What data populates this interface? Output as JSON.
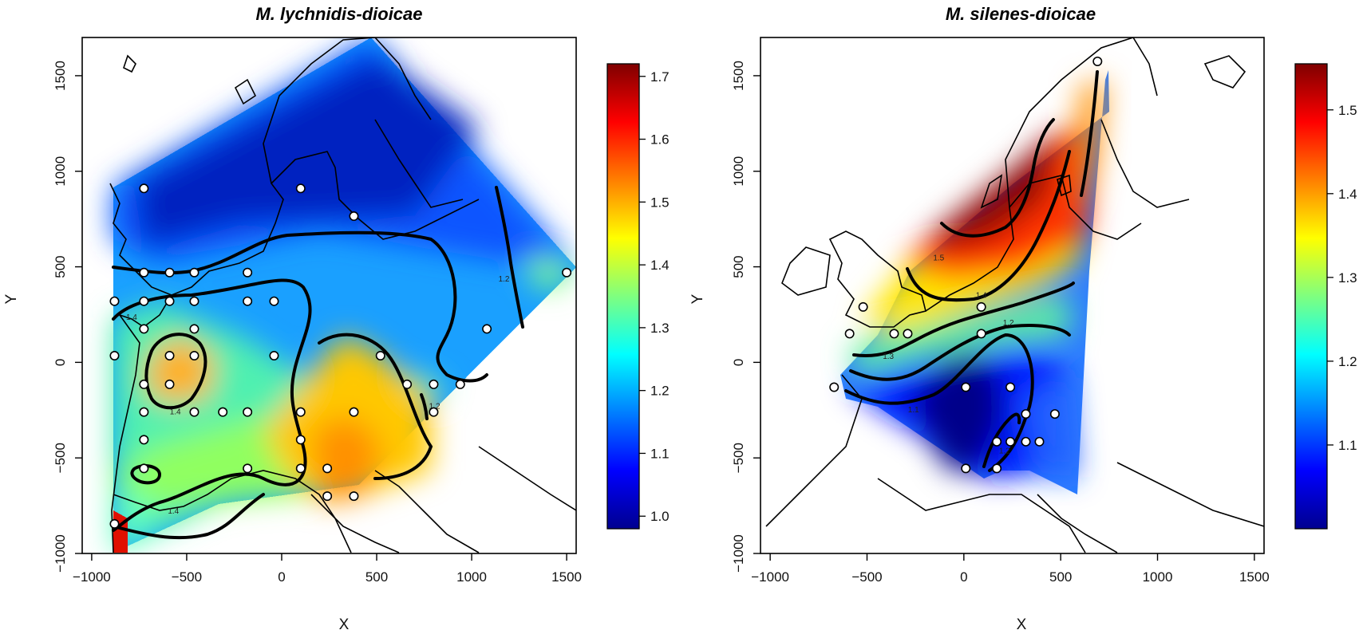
{
  "chart_data": [
    {
      "type": "heatmap",
      "title": "M. lychnidis-dioicae",
      "xlabel": "X",
      "ylabel": "Y",
      "xlim": [
        -1050,
        1550
      ],
      "ylim": [
        -1000,
        1700
      ],
      "xticks": [
        -1000,
        -500,
        0,
        500,
        1000,
        1500
      ],
      "yticks": [
        -1000,
        -500,
        0,
        500,
        1000,
        1500
      ],
      "xtick_labels": [
        "−1000",
        "−500",
        "0",
        "500",
        "1000",
        "1500"
      ],
      "ytick_labels": [
        "−1000",
        "−500",
        "0",
        "500",
        "1000",
        "1500"
      ],
      "grid": false,
      "colorbar": {
        "range": [
          0.98,
          1.72
        ],
        "ticks": [
          1.0,
          1.1,
          1.2,
          1.3,
          1.4,
          1.5,
          1.6,
          1.7
        ],
        "tick_labels": [
          "1.0",
          "1.1",
          "1.2",
          "1.3",
          "1.4",
          "1.5",
          "1.6",
          "1.7"
        ],
        "colors": [
          "#00008f",
          "#0000ff",
          "#007fff",
          "#00ffff",
          "#7fff7f",
          "#ffff00",
          "#ff7f00",
          "#ff0000",
          "#7f0000"
        ]
      },
      "contour_labels": [
        {
          "text": "1.2",
          "x": 1170,
          "y": 440
        },
        {
          "text": "1.4",
          "x": -560,
          "y": -255
        },
        {
          "text": "1.4",
          "x": -570,
          "y": -775
        },
        {
          "text": "1.2",
          "x": 805,
          "y": -225
        },
        {
          "text": "1.4",
          "x": -790,
          "y": 240
        }
      ],
      "sample_sites": [
        {
          "x": -725,
          "y": 910
        },
        {
          "x": 100,
          "y": 910
        },
        {
          "x": 380,
          "y": 765
        },
        {
          "x": -880,
          "y": 320
        },
        {
          "x": -725,
          "y": 470
        },
        {
          "x": -590,
          "y": 470
        },
        {
          "x": -460,
          "y": 470
        },
        {
          "x": -180,
          "y": 470
        },
        {
          "x": -725,
          "y": 320
        },
        {
          "x": -590,
          "y": 320
        },
        {
          "x": -460,
          "y": 320
        },
        {
          "x": -180,
          "y": 320
        },
        {
          "x": -40,
          "y": 320
        },
        {
          "x": -725,
          "y": 175
        },
        {
          "x": -460,
          "y": 175
        },
        {
          "x": -880,
          "y": 35
        },
        {
          "x": -590,
          "y": 35
        },
        {
          "x": -460,
          "y": 35
        },
        {
          "x": -40,
          "y": 35
        },
        {
          "x": 520,
          "y": 35
        },
        {
          "x": 1080,
          "y": 175
        },
        {
          "x": 1500,
          "y": 470
        },
        {
          "x": -725,
          "y": -115
        },
        {
          "x": -590,
          "y": -115
        },
        {
          "x": 660,
          "y": -115
        },
        {
          "x": 800,
          "y": -115
        },
        {
          "x": 940,
          "y": -115
        },
        {
          "x": -725,
          "y": -260
        },
        {
          "x": -460,
          "y": -260
        },
        {
          "x": -310,
          "y": -260
        },
        {
          "x": -180,
          "y": -260
        },
        {
          "x": 100,
          "y": -260
        },
        {
          "x": 380,
          "y": -260
        },
        {
          "x": 800,
          "y": -260
        },
        {
          "x": -725,
          "y": -405
        },
        {
          "x": 100,
          "y": -405
        },
        {
          "x": -725,
          "y": -555
        },
        {
          "x": -180,
          "y": -555
        },
        {
          "x": 100,
          "y": -555
        },
        {
          "x": 240,
          "y": -555
        },
        {
          "x": 240,
          "y": -700
        },
        {
          "x": 380,
          "y": -700
        },
        {
          "x": -880,
          "y": -845
        }
      ]
    },
    {
      "type": "heatmap",
      "title": "M. silenes-dioicae",
      "xlabel": "X",
      "ylabel": "Y",
      "xlim": [
        -1050,
        1550
      ],
      "ylim": [
        -1000,
        1700
      ],
      "xticks": [
        -1000,
        -500,
        0,
        500,
        1000,
        1500
      ],
      "yticks": [
        -1000,
        -500,
        0,
        500,
        1000,
        1500
      ],
      "xtick_labels": [
        "−1000",
        "−500",
        "0",
        "500",
        "1000",
        "1500"
      ],
      "ytick_labels": [
        "−1000",
        "−500",
        "0",
        "500",
        "1000",
        "1500"
      ],
      "grid": false,
      "colorbar": {
        "range": [
          1.0,
          1.555
        ],
        "ticks": [
          1.1,
          1.2,
          1.3,
          1.4,
          1.5
        ],
        "tick_labels": [
          "1.1",
          "1.2",
          "1.3",
          "1.4",
          "1.5"
        ],
        "colors": [
          "#00008f",
          "#0000ff",
          "#007fff",
          "#00ffff",
          "#7fff7f",
          "#ffff00",
          "#ff7f00",
          "#ff0000",
          "#7f0000"
        ]
      },
      "contour_labels": [
        {
          "text": "1.5",
          "x": -130,
          "y": 550
        },
        {
          "text": "1.4",
          "x": 90,
          "y": 355
        },
        {
          "text": "1.3",
          "x": -390,
          "y": 35
        },
        {
          "text": "1.2",
          "x": 230,
          "y": 210
        },
        {
          "text": "1.1",
          "x": -260,
          "y": -245
        },
        {
          "text": "1.2",
          "x": 210,
          "y": -460
        }
      ],
      "sample_sites": [
        {
          "x": 690,
          "y": 1575
        },
        {
          "x": -520,
          "y": 290
        },
        {
          "x": -590,
          "y": 150
        },
        {
          "x": -360,
          "y": 150
        },
        {
          "x": -290,
          "y": 150
        },
        {
          "x": 90,
          "y": 290
        },
        {
          "x": 90,
          "y": 150
        },
        {
          "x": -670,
          "y": -130
        },
        {
          "x": 10,
          "y": -130
        },
        {
          "x": 240,
          "y": -130
        },
        {
          "x": 320,
          "y": -270
        },
        {
          "x": 470,
          "y": -270
        },
        {
          "x": 170,
          "y": -415
        },
        {
          "x": 240,
          "y": -415
        },
        {
          "x": 320,
          "y": -415
        },
        {
          "x": 390,
          "y": -415
        },
        {
          "x": 10,
          "y": -555
        },
        {
          "x": 170,
          "y": -555
        }
      ]
    }
  ]
}
